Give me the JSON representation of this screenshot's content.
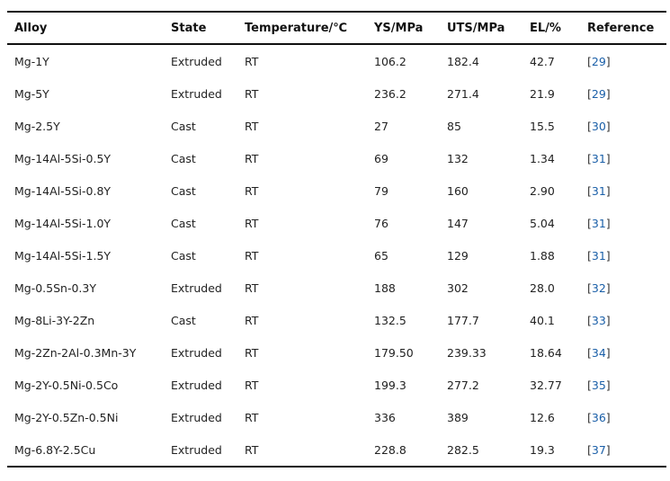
{
  "table": {
    "headers": [
      "Alloy",
      "State",
      "Temperature/℃",
      "YS/MPa",
      "UTS/MPa",
      "EL/%",
      "Reference"
    ],
    "rows": [
      {
        "alloy": "Mg-1Y",
        "state": "Extruded",
        "temperature": "RT",
        "ys": "106.2",
        "uts": "182.4",
        "el": "42.7",
        "ref": "29"
      },
      {
        "alloy": "Mg-5Y",
        "state": "Extruded",
        "temperature": "RT",
        "ys": "236.2",
        "uts": "271.4",
        "el": "21.9",
        "ref": "29"
      },
      {
        "alloy": "Mg-2.5Y",
        "state": "Cast",
        "temperature": "RT",
        "ys": "27",
        "uts": "85",
        "el": "15.5",
        "ref": "30"
      },
      {
        "alloy": "Mg-14Al-5Si-0.5Y",
        "state": "Cast",
        "temperature": "RT",
        "ys": "69",
        "uts": "132",
        "el": "1.34",
        "ref": "31"
      },
      {
        "alloy": "Mg-14Al-5Si-0.8Y",
        "state": "Cast",
        "temperature": "RT",
        "ys": "79",
        "uts": "160",
        "el": "2.90",
        "ref": "31"
      },
      {
        "alloy": "Mg-14Al-5Si-1.0Y",
        "state": "Cast",
        "temperature": "RT",
        "ys": "76",
        "uts": "147",
        "el": "5.04",
        "ref": "31"
      },
      {
        "alloy": "Mg-14Al-5Si-1.5Y",
        "state": "Cast",
        "temperature": "RT",
        "ys": "65",
        "uts": "129",
        "el": "1.88",
        "ref": "31"
      },
      {
        "alloy": "Mg-0.5Sn-0.3Y",
        "state": "Extruded",
        "temperature": "RT",
        "ys": "188",
        "uts": "302",
        "el": "28.0",
        "ref": "32"
      },
      {
        "alloy": "Mg-8Li-3Y-2Zn",
        "state": "Cast",
        "temperature": "RT",
        "ys": "132.5",
        "uts": "177.7",
        "el": "40.1",
        "ref": "33"
      },
      {
        "alloy": "Mg-2Zn-2Al-0.3Mn-3Y",
        "state": "Extruded",
        "temperature": "RT",
        "ys": "179.50",
        "uts": "239.33",
        "el": "18.64",
        "ref": "34"
      },
      {
        "alloy": "Mg-2Y-0.5Ni-0.5Co",
        "state": "Extruded",
        "temperature": "RT",
        "ys": "199.3",
        "uts": "277.2",
        "el": "32.77",
        "ref": "35"
      },
      {
        "alloy": "Mg-2Y-0.5Zn-0.5Ni",
        "state": "Extruded",
        "temperature": "RT",
        "ys": "336",
        "uts": "389",
        "el": "12.6",
        "ref": "36"
      },
      {
        "alloy": "Mg-6.8Y-2.5Cu",
        "state": "Extruded",
        "temperature": "RT",
        "ys": "228.8",
        "uts": "282.5",
        "el": "19.3",
        "ref": "37"
      }
    ]
  },
  "colors": {
    "reference_link": "#1a5fa8",
    "rule": "#111111"
  }
}
